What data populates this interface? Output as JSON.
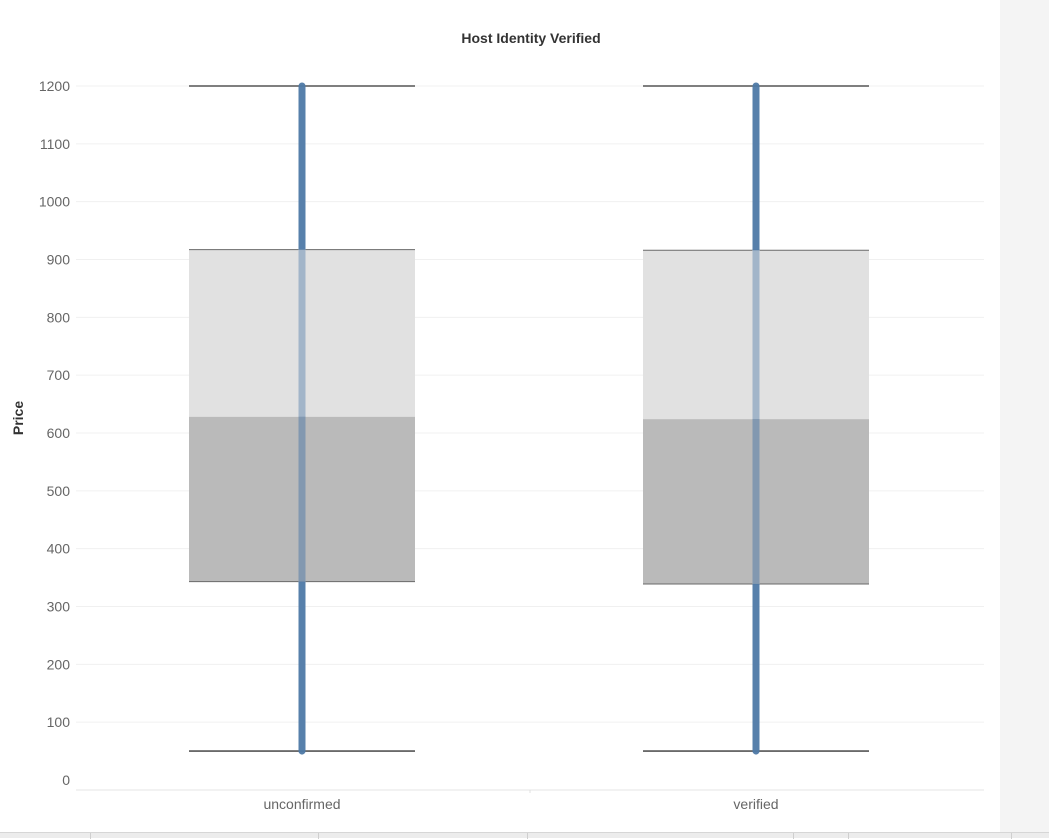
{
  "chart_data": {
    "type": "boxplot",
    "title": "Host Identity Verified",
    "xlabel": "",
    "ylabel": "Price",
    "ylim": [
      0,
      1200
    ],
    "yticks": [
      0,
      100,
      200,
      300,
      400,
      500,
      600,
      700,
      800,
      900,
      1000,
      1100,
      1200
    ],
    "grid": true,
    "categories": [
      "unconfirmed",
      "verified"
    ],
    "boxes": [
      {
        "category": "unconfirmed",
        "min": 50,
        "q1": 343,
        "median": 628,
        "q3": 917,
        "max": 1200
      },
      {
        "category": "verified",
        "min": 50,
        "q1": 339,
        "median": 624,
        "q3": 916,
        "max": 1200
      }
    ],
    "colors": {
      "upper_box": "#e1e1e1",
      "lower_box": "#bababa",
      "whisker_line": "#4e79a7",
      "cap_line": "#555555",
      "grid": "#f0f0f0"
    }
  }
}
